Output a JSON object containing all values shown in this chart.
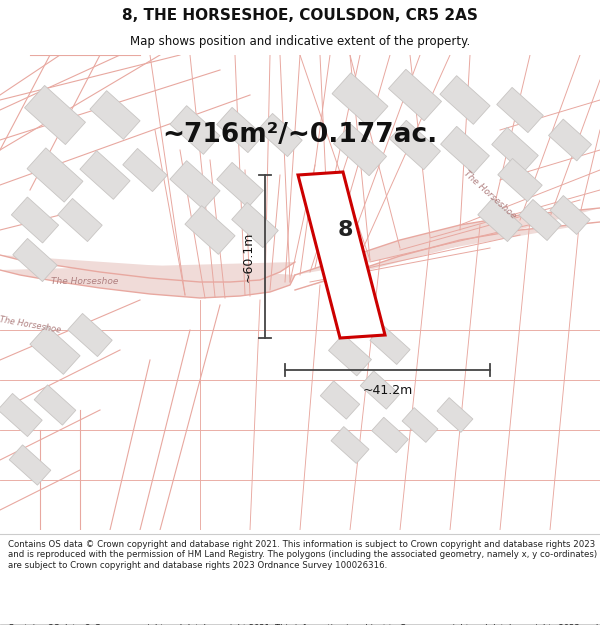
{
  "title": "8, THE HORSESHOE, COULSDON, CR5 2AS",
  "subtitle": "Map shows position and indicative extent of the property.",
  "area_text": "~716m²/~0.177ac.",
  "property_number": "8",
  "dim_width": "~41.2m",
  "dim_height": "~60.1m",
  "footer": "Contains OS data © Crown copyright and database right 2021. This information is subject to Crown copyright and database rights 2023 and is reproduced with the permission of HM Land Registry. The polygons (including the associated geometry, namely x, y co-ordinates) are subject to Crown copyright and database rights 2023 Ordnance Survey 100026316.",
  "bg_color": "#ffffff",
  "map_bg": "#f7f5f3",
  "road_line_color": "#e8a8a0",
  "road_fill_color": "#f0dbd8",
  "building_color": "#e0dedd",
  "building_border": "#c8c5c3",
  "highlight_color": "#cc0000",
  "road_label_color": "#b08080",
  "title_color": "#111111",
  "footer_color": "#222222",
  "dim_line_color": "#444444"
}
